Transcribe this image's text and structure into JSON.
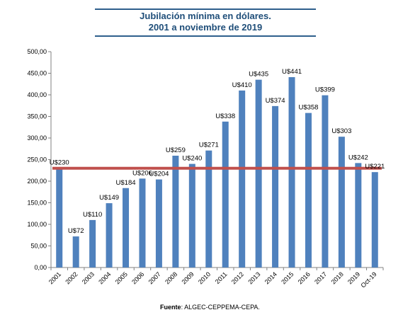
{
  "chart_data": {
    "type": "bar",
    "title": [
      "Jubilación mínima en dólares.",
      "2001 a noviembre de 2019"
    ],
    "categories": [
      "2001",
      "2002",
      "2003",
      "2004",
      "2005",
      "2006",
      "2007",
      "2008",
      "2009",
      "2010",
      "2011",
      "2012",
      "2013",
      "2014",
      "2015",
      "2016",
      "2017",
      "2018",
      "2019",
      "Oct-19"
    ],
    "values": [
      230,
      72,
      110,
      149,
      184,
      206,
      204,
      259,
      240,
      271,
      338,
      410,
      435,
      374,
      441,
      358,
      399,
      303,
      242,
      221
    ],
    "data_labels": [
      "U$230",
      "U$72",
      "U$110",
      "U$149",
      "U$184",
      "U$206",
      "U$204",
      "U$259",
      "U$240",
      "U$271",
      "U$338",
      "U$410",
      "U$435",
      "U$374",
      "U$441",
      "U$358",
      "U$399",
      "U$303",
      "U$242",
      "U$221"
    ],
    "yticks": [
      "0,00",
      "50,00",
      "100,00",
      "150,00",
      "200,00",
      "250,00",
      "300,00",
      "350,00",
      "400,00",
      "450,00",
      "500,00"
    ],
    "ylim": [
      0,
      500
    ],
    "reference_line": 230,
    "bar_color": "#4f81bd",
    "line_color": "#c0504d",
    "grid": false
  },
  "source": {
    "label": "Fuente",
    "text": ": ALGEC-CEPPEMA-CEPA."
  }
}
